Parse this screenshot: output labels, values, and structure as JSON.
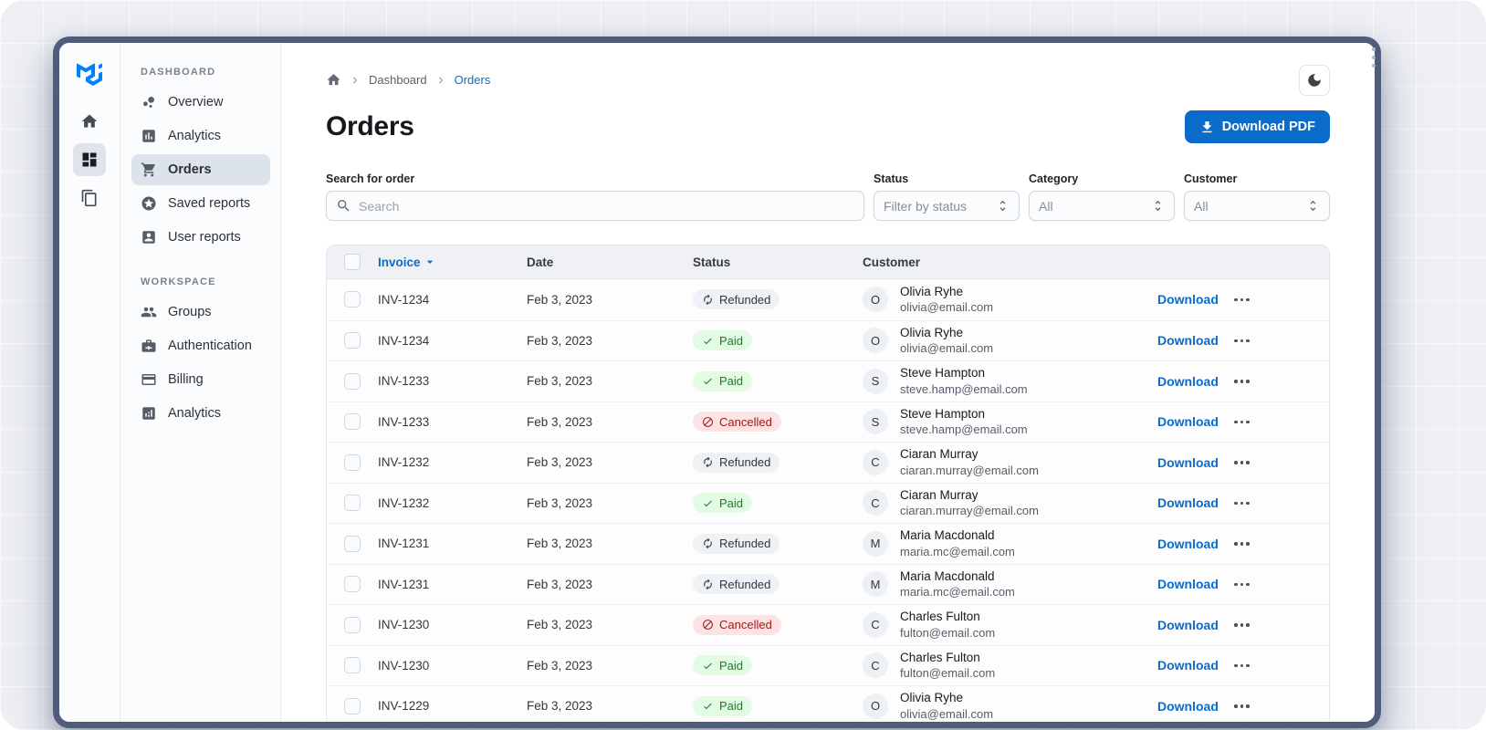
{
  "rail": {
    "logo_icon": "mui-logo",
    "items": [
      {
        "icon": "home",
        "selected": false
      },
      {
        "icon": "dashboard-grid",
        "selected": true
      },
      {
        "icon": "layers",
        "selected": false
      }
    ]
  },
  "sidebar": {
    "sections": [
      {
        "label": "DASHBOARD",
        "items": [
          {
            "icon": "bubble-chart",
            "label": "Overview",
            "selected": false
          },
          {
            "icon": "bar-chart",
            "label": "Analytics",
            "selected": false
          },
          {
            "icon": "shopping-cart",
            "label": "Orders",
            "selected": true
          },
          {
            "icon": "star-circle",
            "label": "Saved reports",
            "selected": false
          },
          {
            "icon": "person-card",
            "label": "User reports",
            "selected": false
          }
        ]
      },
      {
        "label": "WORKSPACE",
        "items": [
          {
            "icon": "groups",
            "label": "Groups",
            "selected": false
          },
          {
            "icon": "badge",
            "label": "Authentication",
            "selected": false
          },
          {
            "icon": "credit-card",
            "label": "Billing",
            "selected": false
          },
          {
            "icon": "analytics-chart",
            "label": "Analytics",
            "selected": false
          }
        ]
      }
    ]
  },
  "topbar": {
    "breadcrumb": {
      "items": [
        {
          "label": "Dashboard"
        },
        {
          "label": "Orders"
        }
      ]
    },
    "theme_toggle_icon": "moon-icon"
  },
  "page": {
    "title": "Orders",
    "download_pdf_label": "Download PDF"
  },
  "filters": {
    "search": {
      "label": "Search for order",
      "placeholder": "Search"
    },
    "selects": [
      {
        "label": "Status",
        "value": "Filter by status"
      },
      {
        "label": "Category",
        "value": "All"
      },
      {
        "label": "Customer",
        "value": "All"
      }
    ]
  },
  "table": {
    "header": {
      "invoice": "Invoice",
      "date": "Date",
      "status": "Status",
      "customer": "Customer"
    },
    "row_action_label": "Download",
    "rows": [
      {
        "invoice": "INV-1234",
        "date": "Feb 3, 2023",
        "status": "Refunded",
        "avatar": "O",
        "name": "Olivia Ryhe",
        "email": "olivia@email.com"
      },
      {
        "invoice": "INV-1234",
        "date": "Feb 3, 2023",
        "status": "Paid",
        "avatar": "O",
        "name": "Olivia Ryhe",
        "email": "olivia@email.com"
      },
      {
        "invoice": "INV-1233",
        "date": "Feb 3, 2023",
        "status": "Paid",
        "avatar": "S",
        "name": "Steve Hampton",
        "email": "steve.hamp@email.com"
      },
      {
        "invoice": "INV-1233",
        "date": "Feb 3, 2023",
        "status": "Cancelled",
        "avatar": "S",
        "name": "Steve Hampton",
        "email": "steve.hamp@email.com"
      },
      {
        "invoice": "INV-1232",
        "date": "Feb 3, 2023",
        "status": "Refunded",
        "avatar": "C",
        "name": "Ciaran Murray",
        "email": "ciaran.murray@email.com"
      },
      {
        "invoice": "INV-1232",
        "date": "Feb 3, 2023",
        "status": "Paid",
        "avatar": "C",
        "name": "Ciaran Murray",
        "email": "ciaran.murray@email.com"
      },
      {
        "invoice": "INV-1231",
        "date": "Feb 3, 2023",
        "status": "Refunded",
        "avatar": "M",
        "name": "Maria Macdonald",
        "email": "maria.mc@email.com"
      },
      {
        "invoice": "INV-1231",
        "date": "Feb 3, 2023",
        "status": "Refunded",
        "avatar": "M",
        "name": "Maria Macdonald",
        "email": "maria.mc@email.com"
      },
      {
        "invoice": "INV-1230",
        "date": "Feb 3, 2023",
        "status": "Cancelled",
        "avatar": "C",
        "name": "Charles Fulton",
        "email": "fulton@email.com"
      },
      {
        "invoice": "INV-1230",
        "date": "Feb 3, 2023",
        "status": "Paid",
        "avatar": "C",
        "name": "Charles Fulton",
        "email": "fulton@email.com"
      },
      {
        "invoice": "INV-1229",
        "date": "Feb 3, 2023",
        "status": "Paid",
        "avatar": "O",
        "name": "Olivia Ryhe",
        "email": "olivia@email.com",
        "partial": true
      }
    ]
  },
  "colors": {
    "primary": "#0b6bcb",
    "window_frame": "#505c7c",
    "paid_bg": "#e3fbe3",
    "paid_text": "#1f7a2f",
    "refunded_bg": "#eef1f5",
    "refunded_text": "#32383e",
    "cancelled_bg": "#fce4e4",
    "cancelled_text": "#a51818"
  }
}
